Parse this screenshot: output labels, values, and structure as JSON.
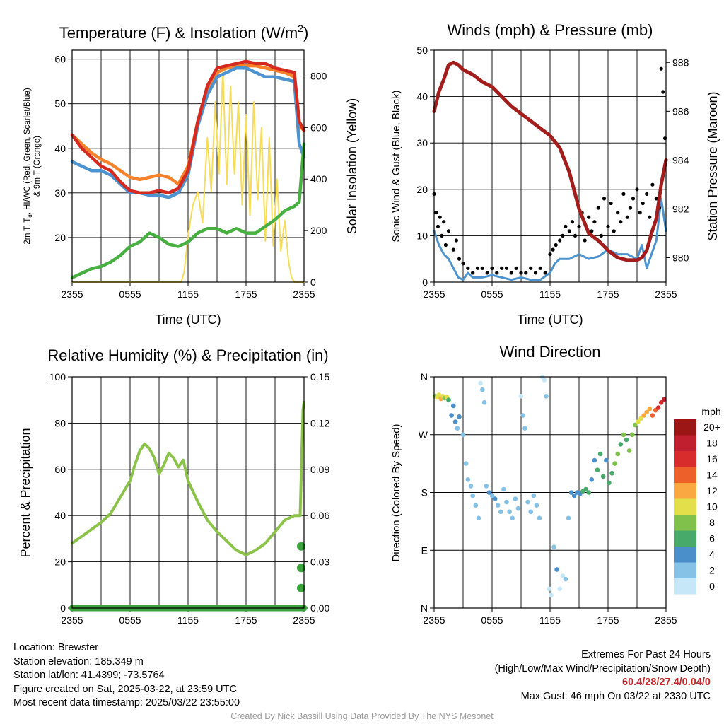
{
  "colors": {
    "temp_red": "#d42a1f",
    "dewpoint_green": "#47b041",
    "windchill_blue": "#4d93cf",
    "temp9m_orange": "#f6822b",
    "insolation_yellow": "#f7dc5a",
    "pressure_maroon": "#a41d1d",
    "wind_blue": "#4d93cf",
    "gust_black": "#000000",
    "rh_green": "#8bc34a",
    "precip_green": "#3aa33e"
  },
  "chart_data": [
    {
      "id": "temperature",
      "type": "line",
      "title": "Temperature (F) & Insolation (W/m",
      "title_sup": "2",
      "title_close": ")",
      "xlabel": "Time (UTC)",
      "ylabel_lines": [
        "2m T, T",
        "d",
        ", HI/WC (Red, Green, Scarlet/Blue)",
        "& 9m T (Orange)"
      ],
      "ylabel_right": "Solar Insolation (Yellow)",
      "x_ticks": [
        "2355",
        "0555",
        "1155",
        "1755",
        "2355"
      ],
      "x_range_hours": [
        0,
        24
      ],
      "ylim_left": [
        10,
        62
      ],
      "yticks_left": [
        "20",
        "30",
        "40",
        "50",
        "60"
      ],
      "ylim_right": [
        0,
        900
      ],
      "yticks_right": [
        "0",
        "200",
        "400",
        "600",
        "800"
      ],
      "x_hours": [
        0,
        1,
        2,
        3,
        4,
        5,
        6,
        7,
        8,
        9,
        10,
        11,
        12,
        13,
        14,
        15,
        16,
        17,
        18,
        19,
        20,
        21,
        22,
        23,
        23.5,
        24
      ],
      "series": [
        {
          "key": "temp_9m",
          "color_key": "temp9m_orange",
          "values": [
            43,
            41,
            39,
            37.5,
            36.5,
            35,
            33.5,
            33,
            33.5,
            34,
            33.5,
            32,
            36,
            46,
            53,
            57,
            58,
            58.5,
            58.5,
            58.5,
            58,
            57.5,
            57,
            56,
            45,
            44
          ]
        },
        {
          "key": "windchill",
          "color_key": "windchill_blue",
          "values": [
            37,
            36,
            35,
            35,
            34,
            32,
            30,
            30,
            29.5,
            29.5,
            29,
            30,
            34,
            45,
            52,
            56,
            57,
            58,
            58,
            57,
            56,
            56,
            55.5,
            55,
            41,
            38
          ]
        },
        {
          "key": "temp_2m",
          "color_key": "temp_red",
          "values": [
            43,
            40,
            38,
            36,
            35,
            32.5,
            30.5,
            30,
            30,
            30.5,
            30,
            31,
            35,
            46,
            54,
            58,
            58.5,
            59,
            59.5,
            59,
            59,
            58,
            57.5,
            57,
            46,
            44
          ]
        },
        {
          "key": "dewpoint",
          "color_key": "dewpoint_green",
          "values": [
            11,
            12,
            13,
            13.5,
            14.5,
            16,
            18,
            19,
            21,
            20,
            18.5,
            18,
            19,
            21,
            22,
            22,
            21,
            22,
            21,
            21,
            22.5,
            24,
            26,
            27,
            28,
            41
          ]
        }
      ],
      "insolation": {
        "x_hours": [
          0,
          11.3,
          11.6,
          12,
          12.5,
          13,
          13.5,
          14,
          14.4,
          14.8,
          15.2,
          15.6,
          16,
          16.4,
          16.8,
          17.2,
          17.6,
          18,
          18.4,
          18.8,
          19.2,
          19.6,
          20,
          20.4,
          20.8,
          21.2,
          21.6,
          22,
          22.4,
          22.7,
          23,
          24
        ],
        "values": [
          0,
          0,
          40,
          180,
          300,
          350,
          230,
          560,
          350,
          700,
          420,
          820,
          380,
          760,
          420,
          700,
          300,
          650,
          260,
          700,
          320,
          600,
          160,
          560,
          140,
          400,
          120,
          240,
          80,
          20,
          0,
          0
        ]
      }
    },
    {
      "id": "winds",
      "type": "line",
      "title": "Winds (mph) & Pressure (mb)",
      "xlabel": "Time (UTC)",
      "ylabel": "Sonic Wind & Gust (Blue, Black)",
      "ylabel_right": "Station Pressure (Maroon)",
      "x_ticks": [
        "2355",
        "0555",
        "1155",
        "1755",
        "2355"
      ],
      "x_range_hours": [
        0,
        24
      ],
      "ylim_left": [
        0,
        50
      ],
      "yticks_left": [
        "0",
        "10",
        "20",
        "30",
        "40",
        "50"
      ],
      "ylim_right": [
        979,
        988.5
      ],
      "yticks_right": [
        "980",
        "982",
        "984",
        "986",
        "988"
      ],
      "pressure": {
        "name": "pressure",
        "x_hours": [
          0,
          0.5,
          1,
          1.5,
          2,
          2.5,
          3,
          4,
          5,
          6,
          7,
          8,
          9,
          10,
          11,
          12,
          13,
          14,
          15,
          16,
          17,
          17.5,
          18,
          19,
          20,
          21,
          21.5,
          22,
          22.5,
          23,
          23.5,
          24
        ],
        "values": [
          986.0,
          986.8,
          987.3,
          987.9,
          988.0,
          987.9,
          987.7,
          987.5,
          987.2,
          987.0,
          986.6,
          986.2,
          985.9,
          985.6,
          985.3,
          985.0,
          984.5,
          983.5,
          982.0,
          981.0,
          980.7,
          980.5,
          980.3,
          980.0,
          979.9,
          979.9,
          980.0,
          980.3,
          981.0,
          981.6,
          983.0,
          984.0
        ]
      },
      "wind": {
        "name": "sonic wind",
        "x_hours": [
          0,
          0.5,
          1,
          1.5,
          2,
          2.5,
          3,
          3.5,
          4,
          5,
          6,
          7,
          8,
          9,
          10,
          11,
          12,
          12.5,
          13,
          14,
          15,
          16,
          17,
          18,
          19,
          20,
          21,
          21.5,
          22,
          22.5,
          23,
          23.5,
          24
        ],
        "values": [
          11,
          8,
          6,
          5,
          3,
          1,
          0.5,
          2,
          1,
          1,
          1.5,
          1,
          0.5,
          1,
          0.5,
          0.5,
          2,
          4,
          5,
          5,
          6,
          5,
          5.5,
          7,
          6,
          6,
          5,
          8,
          3,
          6,
          9,
          18,
          11
        ]
      },
      "gust_points": {
        "x_hours": [
          0,
          0.2,
          0.4,
          0.6,
          0.8,
          1.0,
          1.2,
          1.5,
          2.0,
          2.3,
          2.6,
          3.0,
          3.5,
          4.0,
          4.5,
          5.0,
          5.5,
          6.0,
          6.5,
          7.0,
          7.5,
          8.0,
          8.5,
          9.0,
          9.5,
          10.0,
          10.5,
          11.0,
          11.5,
          12.0,
          12.3,
          12.6,
          13.0,
          13.3,
          13.6,
          14.0,
          14.3,
          14.6,
          15.0,
          15.3,
          15.6,
          16.0,
          16.3,
          16.6,
          17.0,
          17.3,
          17.6,
          18.0,
          18.3,
          18.6,
          19.0,
          19.3,
          19.6,
          20.0,
          20.3,
          20.6,
          21.0,
          21.3,
          21.6,
          22.0,
          22.3,
          22.6,
          23.0,
          23.3,
          23.5,
          23.7,
          23.9
        ],
        "values": [
          19,
          15,
          12,
          14,
          10,
          13,
          8,
          11,
          7,
          9,
          5,
          4,
          3,
          2,
          3,
          3,
          2,
          3,
          2,
          3,
          3,
          2,
          3,
          2,
          2,
          3,
          2,
          3,
          2,
          6,
          7,
          8,
          9,
          10,
          12,
          11,
          13,
          10,
          12,
          15,
          9,
          14,
          11,
          13,
          16,
          10,
          18,
          12,
          17,
          11,
          15,
          13,
          19,
          14,
          16,
          18,
          20,
          15,
          17,
          19,
          14,
          21,
          18,
          16,
          46,
          41,
          31
        ]
      }
    },
    {
      "id": "humidity",
      "type": "line",
      "title": "Relative Humidity (%) & Precipitation (in)",
      "ylabel": "Percent & Precipitation",
      "x_ticks": [
        "2355",
        "0555",
        "1155",
        "1755",
        "2355"
      ],
      "x_range_hours": [
        0,
        24
      ],
      "ylim_left": [
        0,
        100
      ],
      "yticks_left": [
        "0",
        "20",
        "40",
        "60",
        "80",
        "100"
      ],
      "ylim_right": [
        0,
        0.15
      ],
      "yticks_right": [
        "0.00",
        "0.03",
        "0.06",
        "0.09",
        "0.12",
        "0.15"
      ],
      "rh": {
        "name": "relative humidity",
        "x_hours": [
          0,
          1,
          2,
          3,
          4,
          5,
          6,
          6.5,
          7,
          7.5,
          8,
          8.5,
          9,
          9.5,
          10,
          10.5,
          11,
          11.5,
          12,
          13,
          14,
          15,
          16,
          17,
          17.5,
          18,
          19,
          20,
          21,
          22,
          23,
          23.6,
          23.9,
          24
        ],
        "values": [
          28,
          31,
          34,
          37,
          41,
          48,
          55,
          62,
          68,
          71,
          69,
          65,
          58,
          62,
          67,
          65,
          61,
          64,
          55,
          46,
          38,
          33,
          29,
          25,
          24,
          23,
          25,
          28,
          33,
          38,
          40,
          40,
          86,
          89
        ]
      },
      "precip": {
        "name": "precipitation",
        "x_hours": [
          0,
          24
        ],
        "values": [
          0,
          0
        ],
        "markers": [
          0.013,
          0.026,
          0.04
        ]
      }
    },
    {
      "id": "direction",
      "type": "scatter",
      "title": "Wind Direction",
      "ylabel": "Direction (Colored By Speed)",
      "x_ticks": [
        "2355",
        "0555",
        "1155",
        "1755",
        "2355"
      ],
      "x_range_hours": [
        0,
        24
      ],
      "ylim": [
        0,
        360
      ],
      "yticks": [
        "N",
        "E",
        "S",
        "W",
        "N"
      ],
      "legend_title": "mph",
      "legend_labels": [
        "0",
        "2",
        "4",
        "6",
        "8",
        "10",
        "12",
        "14",
        "16",
        "18",
        "20+"
      ],
      "legend_colors": [
        "#c6e7f7",
        "#86c1e6",
        "#4a8fca",
        "#47a96a",
        "#7fc14a",
        "#e3df4b",
        "#f9a842",
        "#ee6029",
        "#d82b2b",
        "#bf1f2f",
        "#9d1616"
      ],
      "legend_placement": "right",
      "points": [
        [
          0.1,
          330,
          8
        ],
        [
          0.3,
          328,
          10
        ],
        [
          0.5,
          332,
          9
        ],
        [
          0.7,
          326,
          11
        ],
        [
          0.9,
          330,
          10
        ],
        [
          1.1,
          327,
          8
        ],
        [
          1.3,
          329,
          9
        ],
        [
          1.5,
          324,
          5
        ],
        [
          1.8,
          300,
          3
        ],
        [
          2.0,
          315,
          3
        ],
        [
          2.2,
          290,
          3
        ],
        [
          2.4,
          280,
          2
        ],
        [
          2.6,
          298,
          4
        ],
        [
          3.0,
          270,
          2
        ],
        [
          3.3,
          225,
          1
        ],
        [
          3.5,
          200,
          1
        ],
        [
          3.8,
          190,
          2
        ],
        [
          4.0,
          175,
          1
        ],
        [
          4.3,
          160,
          1
        ],
        [
          4.6,
          140,
          1
        ],
        [
          4.8,
          350,
          0
        ],
        [
          5.0,
          340,
          1
        ],
        [
          5.2,
          320,
          1
        ],
        [
          5.4,
          190,
          2
        ],
        [
          5.7,
          180,
          3
        ],
        [
          6.0,
          175,
          2
        ],
        [
          6.3,
          170,
          3
        ],
        [
          6.6,
          160,
          1
        ],
        [
          6.9,
          150,
          2
        ],
        [
          7.2,
          185,
          1
        ],
        [
          7.5,
          165,
          2
        ],
        [
          7.8,
          150,
          2
        ],
        [
          8.1,
          140,
          1
        ],
        [
          8.4,
          170,
          2
        ],
        [
          8.7,
          155,
          1
        ],
        [
          9.0,
          330,
          0
        ],
        [
          9.2,
          300,
          1
        ],
        [
          9.4,
          280,
          1
        ],
        [
          9.7,
          165,
          2
        ],
        [
          10.0,
          150,
          1
        ],
        [
          10.3,
          175,
          2
        ],
        [
          10.6,
          160,
          1
        ],
        [
          10.9,
          140,
          2
        ],
        [
          11.2,
          370,
          0
        ],
        [
          11.4,
          355,
          0
        ],
        [
          11.6,
          330,
          1
        ],
        [
          11.9,
          30,
          0
        ],
        [
          12.1,
          20,
          0
        ],
        [
          12.4,
          95,
          2
        ],
        [
          12.7,
          60,
          3
        ],
        [
          13.0,
          30,
          0
        ],
        [
          13.3,
          50,
          0
        ],
        [
          13.6,
          45,
          1
        ],
        [
          13.9,
          140,
          1
        ],
        [
          14.2,
          180,
          3
        ],
        [
          14.5,
          175,
          4
        ],
        [
          14.8,
          180,
          4
        ],
        [
          15.1,
          178,
          4
        ],
        [
          15.4,
          182,
          5
        ],
        [
          15.7,
          185,
          5
        ],
        [
          16.0,
          180,
          5
        ],
        [
          16.3,
          200,
          4
        ],
        [
          16.6,
          230,
          4
        ],
        [
          16.9,
          215,
          6
        ],
        [
          17.2,
          240,
          5
        ],
        [
          17.5,
          205,
          6
        ],
        [
          17.8,
          230,
          4
        ],
        [
          18.1,
          195,
          5
        ],
        [
          18.4,
          210,
          6
        ],
        [
          18.7,
          225,
          7
        ],
        [
          19.0,
          240,
          7
        ],
        [
          19.3,
          255,
          6
        ],
        [
          19.6,
          270,
          7
        ],
        [
          19.9,
          262,
          6
        ],
        [
          20.2,
          245,
          8
        ],
        [
          20.5,
          270,
          7
        ],
        [
          20.8,
          285,
          8
        ],
        [
          21.1,
          290,
          9
        ],
        [
          21.4,
          295,
          10
        ],
        [
          21.7,
          300,
          11
        ],
        [
          22.0,
          305,
          12
        ],
        [
          22.3,
          310,
          12
        ],
        [
          22.6,
          300,
          13
        ],
        [
          22.9,
          308,
          14
        ],
        [
          23.2,
          312,
          15
        ],
        [
          23.5,
          320,
          16
        ],
        [
          23.8,
          325,
          18
        ]
      ]
    }
  ],
  "info": {
    "location": "Location: Brewster",
    "elevation": "Station elevation: 185.349 m",
    "latlon": "Station lat/lon: 41.4399; -73.5764",
    "created": "Figure created on Sat, 2025-03-22, at 23:59 UTC",
    "recent": "Most recent data timestamp: 2025/03/22 23:55:00"
  },
  "extremes": {
    "title": "Extremes For Past 24 Hours",
    "subtitle": "(High/Low/Max Wind/Precipitation/Snow Depth)",
    "values": "60.4/28/27.4/0.04/0",
    "gust": "Max Gust: 46 mph On 03/22 at 2330 UTC"
  },
  "credit": "Created By Nick Bassill Using Data Provided By The NYS Mesonet"
}
